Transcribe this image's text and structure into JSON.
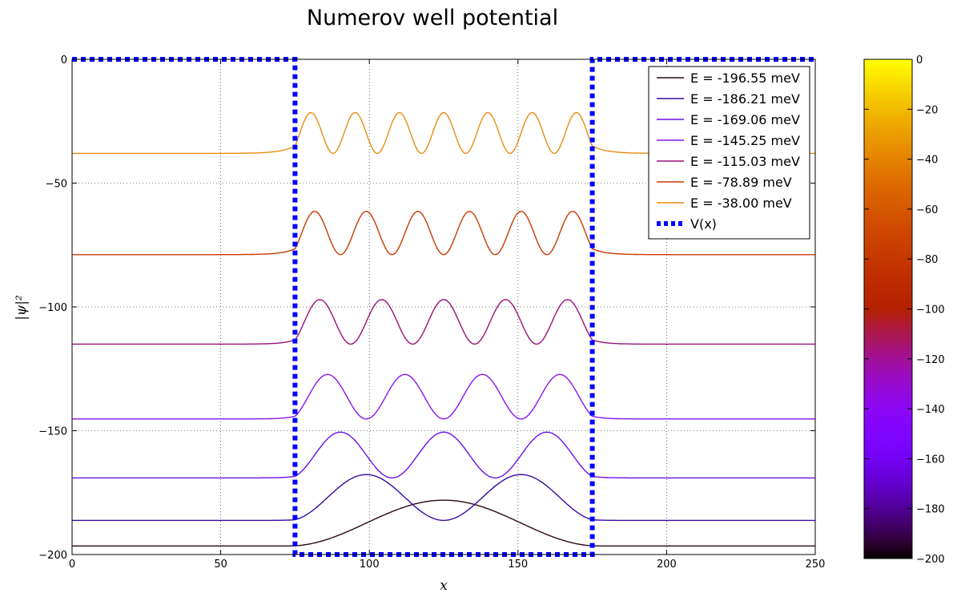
{
  "chart_data": {
    "type": "line",
    "title": "Numerov well potential",
    "xlabel": "x",
    "ylabel": "|ψ|²",
    "xlim": [
      0,
      250
    ],
    "ylim": [
      -200,
      0
    ],
    "xticks": [
      "0",
      "50",
      "100",
      "150",
      "200",
      "250"
    ],
    "yticks": [
      "0",
      "−50",
      "−100",
      "−150",
      "−200"
    ],
    "grid": true,
    "legend_position": "top-right",
    "well": {
      "x_left": 75,
      "x_right": 175,
      "depth": -200
    },
    "series": [
      {
        "name": "E = -196.55 meV",
        "energy": -196.55,
        "n": 1,
        "peak_amplitude": 18.5,
        "color": "#2a0a14"
      },
      {
        "name": "E = -186.21 meV",
        "energy": -186.21,
        "n": 2,
        "peak_amplitude": 18.5,
        "color": "#3a0aa0"
      },
      {
        "name": "E = -169.06 meV",
        "energy": -169.06,
        "n": 3,
        "peak_amplitude": 18.5,
        "color": "#6a10e8"
      },
      {
        "name": "E = -145.25 meV",
        "energy": -145.25,
        "n": 4,
        "peak_amplitude": 18.0,
        "color": "#8a14f0"
      },
      {
        "name": "E = -115.03 meV",
        "energy": -115.03,
        "n": 5,
        "peak_amplitude": 18.0,
        "color": "#9a1078"
      },
      {
        "name": "E = -78.89 meV",
        "energy": -78.89,
        "n": 6,
        "peak_amplitude": 17.5,
        "color": "#c83a00"
      },
      {
        "name": "E = -38.00 meV",
        "energy": -38.0,
        "n": 7,
        "peak_amplitude": 16.5,
        "color": "#e88c10"
      }
    ],
    "potential_series": {
      "name": "V(x)",
      "color": "#0000ff",
      "style": "dotted"
    },
    "colorbar": {
      "range": [
        -200,
        0
      ],
      "ticks": [
        "0",
        "−20",
        "−40",
        "−60",
        "−80",
        "−100",
        "−120",
        "−140",
        "−160",
        "−180",
        "−200"
      ],
      "colormap": "gnuplot"
    }
  }
}
